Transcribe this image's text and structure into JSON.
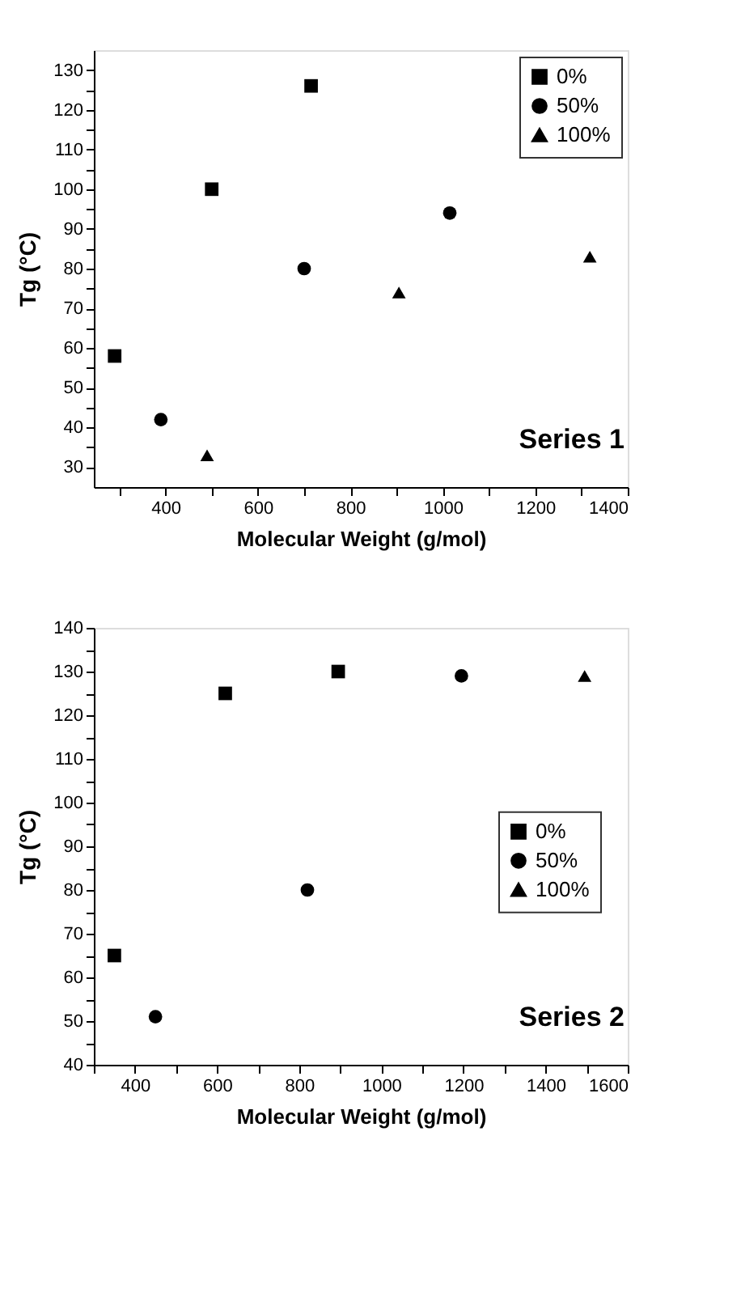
{
  "chart_data": [
    {
      "type": "scatter",
      "xlabel": "Molecular Weight (g/mol)",
      "ylabel": "Tg (°C)",
      "annotations": [
        "Series 1"
      ],
      "legend": "top right",
      "grid": false,
      "xlim": [
        245,
        1400
      ],
      "ylim": [
        25,
        135
      ],
      "xticks": [
        {
          "value": 300,
          "label": null
        },
        400,
        {
          "value": 500,
          "label": null
        },
        600,
        {
          "value": 700,
          "label": null
        },
        800,
        {
          "value": 900,
          "label": null
        },
        1000,
        {
          "value": 1100,
          "label": null
        },
        1200,
        {
          "value": 1300,
          "label": null
        },
        1400
      ],
      "yticks": [
        30,
        {
          "value": 35,
          "label": null
        },
        40,
        {
          "value": 45,
          "label": null
        },
        50,
        {
          "value": 55,
          "label": null
        },
        60,
        {
          "value": 65,
          "label": null
        },
        70,
        {
          "value": 75,
          "label": null
        },
        80,
        {
          "value": 85,
          "label": null
        },
        90,
        {
          "value": 95,
          "label": null
        },
        100,
        {
          "value": 105,
          "label": null
        },
        110,
        {
          "value": 115,
          "label": null
        },
        120,
        {
          "value": 125,
          "label": null
        },
        130
      ],
      "series": [
        {
          "name": "0%",
          "color": "#000000",
          "marker": "square",
          "x": [
            290,
            500,
            715
          ],
          "values": [
            58,
            100,
            126
          ]
        },
        {
          "name": "50%",
          "color": "#000000",
          "marker": "circle",
          "x": [
            390,
            700,
            1015
          ],
          "values": [
            42,
            80,
            94
          ]
        },
        {
          "name": "100%",
          "color": "#000000",
          "marker": "triangle",
          "x": [
            490,
            905,
            1318
          ],
          "values": [
            33,
            74,
            83
          ]
        }
      ]
    },
    {
      "type": "scatter",
      "xlabel": "Molecular Weight (g/mol)",
      "ylabel": "Tg (°C)",
      "annotations": [
        "Series 2"
      ],
      "legend": "right",
      "grid": false,
      "xlim": [
        300,
        1600
      ],
      "ylim": [
        40,
        140
      ],
      "xticks": [
        {
          "value": 300,
          "label": null
        },
        400,
        {
          "value": 500,
          "label": null
        },
        600,
        {
          "value": 700,
          "label": null
        },
        800,
        {
          "value": 900,
          "label": null
        },
        1000,
        {
          "value": 1100,
          "label": null
        },
        1200,
        {
          "value": 1300,
          "label": null
        },
        1400,
        {
          "value": 1500,
          "label": null
        },
        1600
      ],
      "yticks": [
        40,
        {
          "value": 45,
          "label": null
        },
        50,
        {
          "value": 55,
          "label": null
        },
        60,
        {
          "value": 65,
          "label": null
        },
        70,
        {
          "value": 75,
          "label": null
        },
        80,
        {
          "value": 85,
          "label": null
        },
        90,
        {
          "value": 95,
          "label": null
        },
        100,
        {
          "value": 105,
          "label": null
        },
        110,
        {
          "value": 115,
          "label": null
        },
        120,
        {
          "value": 125,
          "label": null
        },
        130,
        {
          "value": 135,
          "label": null
        },
        140
      ],
      "series": [
        {
          "name": "0%",
          "color": "#000000",
          "marker": "square",
          "x": [
            350,
            620,
            895
          ],
          "values": [
            65,
            125,
            130
          ]
        },
        {
          "name": "50%",
          "color": "#000000",
          "marker": "circle",
          "x": [
            450,
            820,
            1195
          ],
          "values": [
            51,
            80,
            129
          ]
        },
        {
          "name": "100%",
          "color": "#000000",
          "marker": "triangle",
          "x": [
            1495
          ],
          "values": [
            129
          ]
        }
      ]
    }
  ]
}
